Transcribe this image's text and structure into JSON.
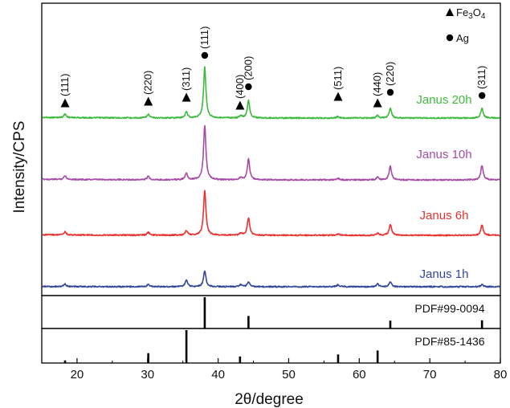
{
  "chart_data": {
    "type": "line",
    "title": "",
    "xlabel": "2θ/degree",
    "ylabel": "Intensity/CPS",
    "xlim": [
      15,
      80
    ],
    "x_ticks": [
      20,
      30,
      40,
      50,
      60,
      70,
      80
    ],
    "grid": false,
    "legend": {
      "placement": "top-right",
      "items": [
        {
          "marker": "triangle",
          "label_parts": [
            "Fe",
            "3",
            "O",
            "4"
          ]
        },
        {
          "marker": "circle",
          "label": "Ag"
        }
      ]
    },
    "series": [
      {
        "name": "Janus 20h",
        "color": "#3dbb3d",
        "peaks": [
          {
            "x": 18.3,
            "height": 0.07
          },
          {
            "x": 30.1,
            "height": 0.07
          },
          {
            "x": 35.5,
            "height": 0.12
          },
          {
            "x": 38.1,
            "height": 1.0
          },
          {
            "x": 43.2,
            "height": 0.04
          },
          {
            "x": 44.3,
            "height": 0.35
          },
          {
            "x": 57.0,
            "height": 0.03
          },
          {
            "x": 62.6,
            "height": 0.05
          },
          {
            "x": 64.4,
            "height": 0.2
          },
          {
            "x": 77.4,
            "height": 0.19
          }
        ]
      },
      {
        "name": "Janus 10h",
        "color": "#a64ca6",
        "peaks": [
          {
            "x": 18.3,
            "height": 0.07
          },
          {
            "x": 30.1,
            "height": 0.06
          },
          {
            "x": 35.5,
            "height": 0.12
          },
          {
            "x": 38.1,
            "height": 1.0
          },
          {
            "x": 43.2,
            "height": 0.04
          },
          {
            "x": 44.3,
            "height": 0.38
          },
          {
            "x": 57.0,
            "height": 0.03
          },
          {
            "x": 62.6,
            "height": 0.05
          },
          {
            "x": 64.4,
            "height": 0.25
          },
          {
            "x": 77.4,
            "height": 0.27
          }
        ]
      },
      {
        "name": "Janus 6h",
        "color": "#e8322f",
        "peaks": [
          {
            "x": 18.3,
            "height": 0.07
          },
          {
            "x": 30.1,
            "height": 0.06
          },
          {
            "x": 35.5,
            "height": 0.1
          },
          {
            "x": 38.1,
            "height": 1.0
          },
          {
            "x": 43.2,
            "height": 0.04
          },
          {
            "x": 44.3,
            "height": 0.39
          },
          {
            "x": 57.0,
            "height": 0.03
          },
          {
            "x": 62.6,
            "height": 0.05
          },
          {
            "x": 64.4,
            "height": 0.24
          },
          {
            "x": 77.4,
            "height": 0.23
          }
        ]
      },
      {
        "name": "Janus 1h",
        "color": "#33479a",
        "peaks": [
          {
            "x": 18.3,
            "height": 0.15
          },
          {
            "x": 30.1,
            "height": 0.13
          },
          {
            "x": 35.5,
            "height": 0.4
          },
          {
            "x": 38.1,
            "height": 1.0
          },
          {
            "x": 43.2,
            "height": 0.13
          },
          {
            "x": 44.3,
            "height": 0.3
          },
          {
            "x": 57.0,
            "height": 0.12
          },
          {
            "x": 62.6,
            "height": 0.17
          },
          {
            "x": 64.4,
            "height": 0.3
          },
          {
            "x": 77.4,
            "height": 0.13
          }
        ]
      }
    ],
    "references": [
      {
        "name": "PDF#99-0094",
        "phase": "Ag",
        "lines": [
          {
            "x": 38.1,
            "intensity": 100
          },
          {
            "x": 44.3,
            "intensity": 40
          },
          {
            "x": 64.4,
            "intensity": 25
          },
          {
            "x": 77.4,
            "intensity": 26
          }
        ]
      },
      {
        "name": "PDF#85-1436",
        "phase": "Fe3O4",
        "lines": [
          {
            "x": 18.3,
            "intensity": 8
          },
          {
            "x": 30.1,
            "intensity": 30
          },
          {
            "x": 35.5,
            "intensity": 100
          },
          {
            "x": 43.1,
            "intensity": 20
          },
          {
            "x": 57.0,
            "intensity": 26
          },
          {
            "x": 62.6,
            "intensity": 38
          }
        ]
      }
    ],
    "annotations": [
      {
        "phase": "Fe3O4",
        "marker": "triangle",
        "x": 18.3,
        "label": "(111)"
      },
      {
        "phase": "Fe3O4",
        "marker": "triangle",
        "x": 30.1,
        "label": "(220)"
      },
      {
        "phase": "Fe3O4",
        "marker": "triangle",
        "x": 35.5,
        "label": "(311)"
      },
      {
        "phase": "Ag",
        "marker": "circle",
        "x": 38.1,
        "label": "(111)"
      },
      {
        "phase": "Fe3O4",
        "marker": "triangle",
        "x": 43.1,
        "label": "(400)"
      },
      {
        "phase": "Ag",
        "marker": "circle",
        "x": 44.3,
        "label": "(200)"
      },
      {
        "phase": "Fe3O4",
        "marker": "triangle",
        "x": 57.0,
        "label": "(511)"
      },
      {
        "phase": "Fe3O4",
        "marker": "triangle",
        "x": 62.6,
        "label": "(440)"
      },
      {
        "phase": "Ag",
        "marker": "circle",
        "x": 64.4,
        "label": "(220)"
      },
      {
        "phase": "Ag",
        "marker": "circle",
        "x": 77.4,
        "label": "(311)"
      }
    ]
  }
}
